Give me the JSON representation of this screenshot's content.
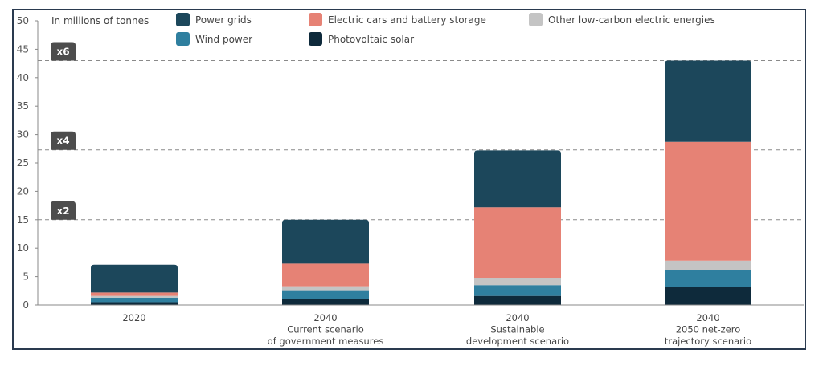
{
  "chart_data": {
    "type": "bar",
    "stacked": true,
    "unit_label": "In millions of tonnes",
    "ylim": [
      0,
      50
    ],
    "yticks": [
      0,
      5,
      10,
      15,
      20,
      25,
      30,
      35,
      40,
      45,
      50
    ],
    "grid": false,
    "legend_position": "top",
    "categories": [
      [
        "2020"
      ],
      [
        "2040",
        "Current scenario",
        "of government measures"
      ],
      [
        "2040",
        "Sustainable",
        "development scenario"
      ],
      [
        "2040",
        "2050 net-zero",
        "trajectory scenario"
      ]
    ],
    "series": [
      {
        "name": "Photovoltaic solar",
        "color": "#0e2a3b",
        "values": [
          0.5,
          1.0,
          1.6,
          3.2
        ]
      },
      {
        "name": "Wind power",
        "color": "#2f7f9f",
        "values": [
          0.8,
          1.6,
          1.9,
          3.0
        ]
      },
      {
        "name": "Other low-carbon electric energies",
        "color": "#c4c4c4",
        "values": [
          0.3,
          0.7,
          1.3,
          1.6
        ]
      },
      {
        "name": "Electric cars and battery storage",
        "color": "#e68275",
        "values": [
          0.6,
          4.0,
          12.4,
          20.9
        ]
      },
      {
        "name": "Power grids",
        "color": "#1c475b",
        "values": [
          4.9,
          7.7,
          10.0,
          14.3
        ]
      }
    ],
    "legend_order": [
      "Power grids",
      "Electric cars and battery storage",
      "Other low-carbon electric energies",
      "Wind power",
      "Photovoltaic solar"
    ],
    "reference_lines": [
      {
        "value": 15,
        "label": "x2"
      },
      {
        "value": 27.3,
        "label": "x4"
      },
      {
        "value": 43,
        "label": "x6"
      }
    ]
  }
}
